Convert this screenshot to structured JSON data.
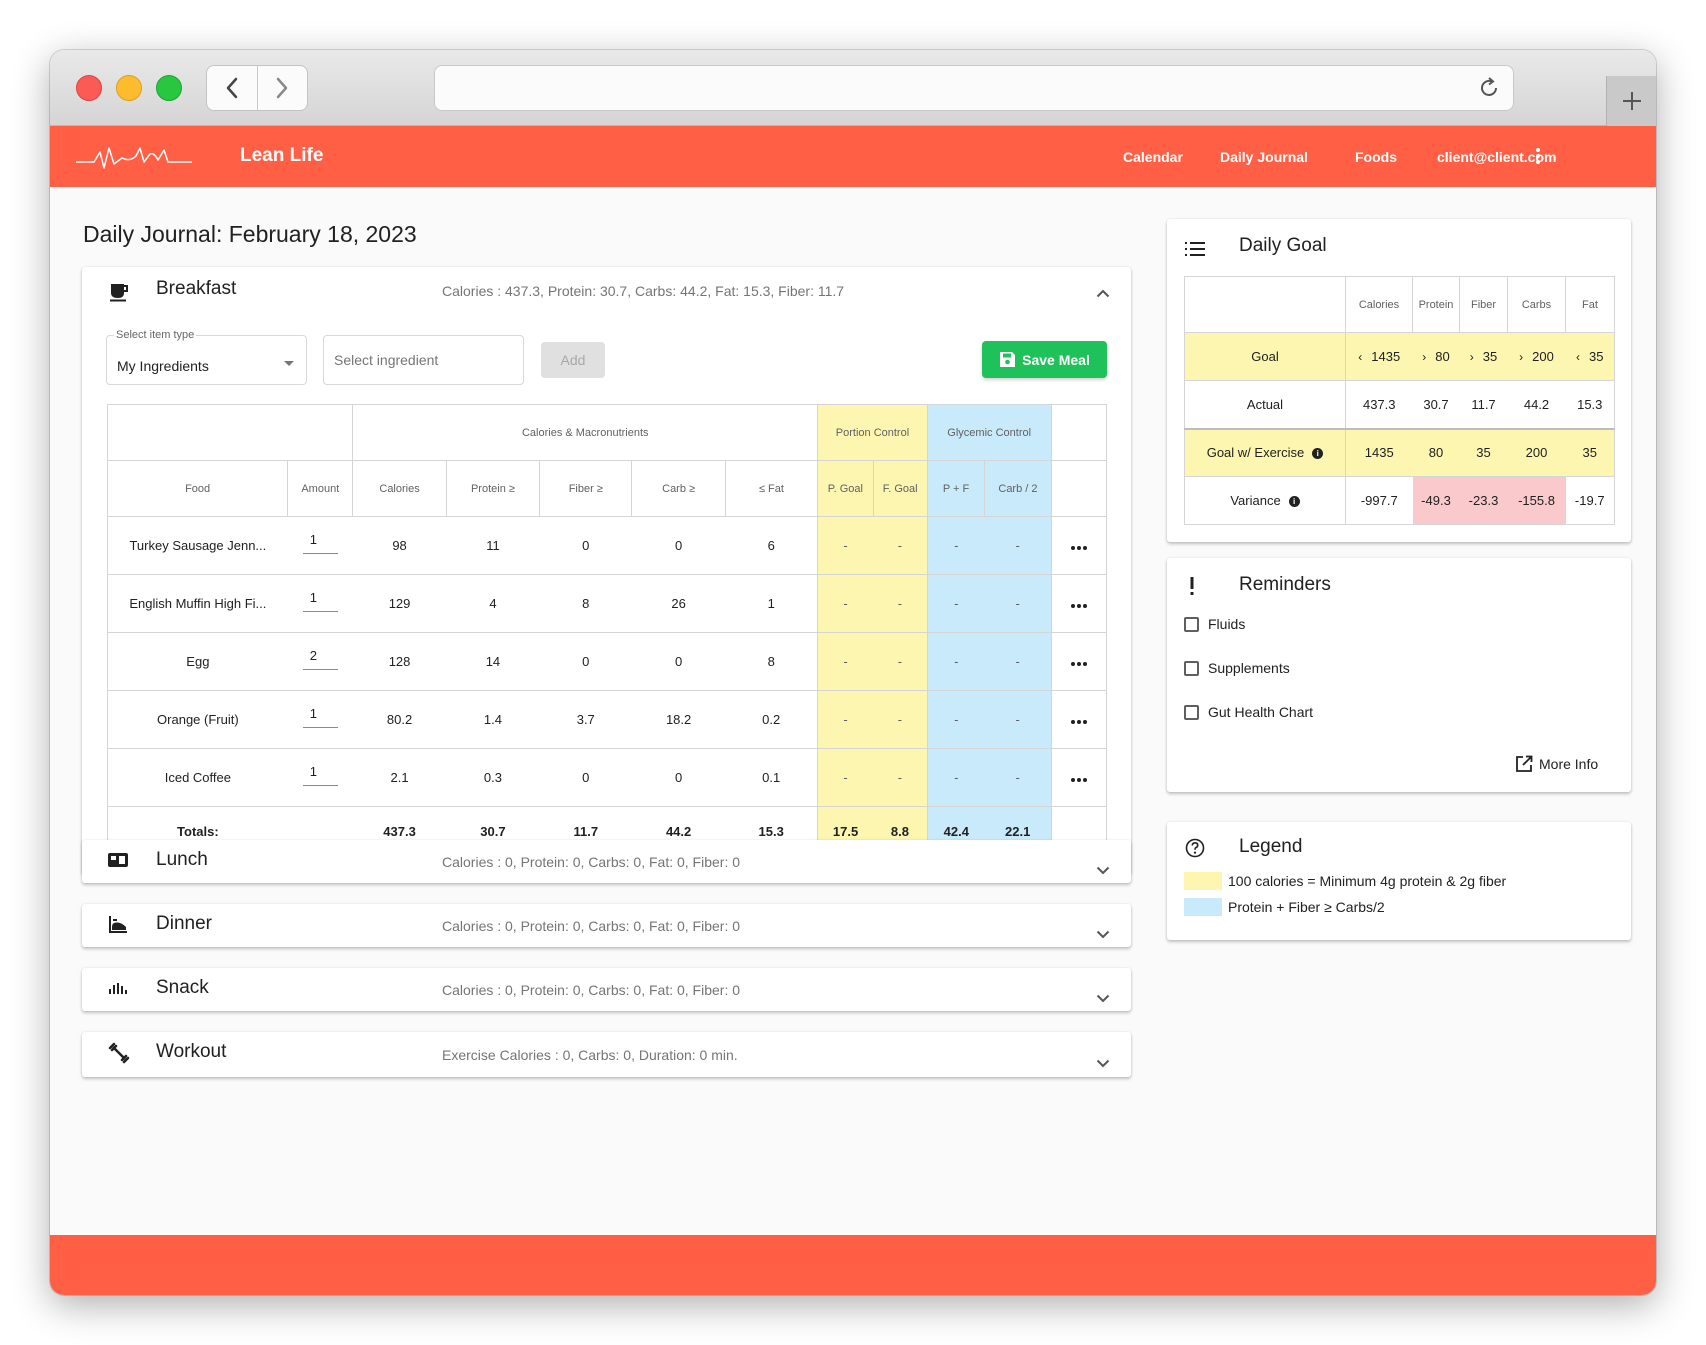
{
  "app": {
    "title": "Lean Life",
    "logo_icon": "heartbeat-signature-logo",
    "nav": [
      "Calendar",
      "Daily Journal",
      "Foods"
    ],
    "user": "client@client.com"
  },
  "page": {
    "title": "Daily Journal: February 18, 2023"
  },
  "breakfast": {
    "title": "Breakfast",
    "summary": "Calories : 437.3, Protein: 30.7, Carbs: 44.2, Fat: 15.3, Fiber: 11.7",
    "select_label": "Select item type",
    "select_value": "My Ingredients",
    "ingredient_placeholder": "Select ingredient",
    "add_label": "Add",
    "save_label": "Save Meal",
    "table": {
      "group_headers": {
        "macros": "Calories & Macronutrients",
        "portion": "Portion Control",
        "glycemic": "Glycemic Control"
      },
      "columns": [
        "Food",
        "Amount",
        "Calories",
        "Protein ≥",
        "Fiber ≥",
        "Carb ≥",
        "≤ Fat",
        "P. Goal",
        "F. Goal",
        "P + F",
        "Carb / 2"
      ],
      "rows": [
        {
          "food": "Turkey Sausage Jenn...",
          "amount": "1",
          "calories": "98",
          "protein": "11",
          "fiber": "0",
          "carb": "0",
          "fat": "6",
          "pgoal": "-",
          "fgoal": "-",
          "pf": "-",
          "carb2": "-"
        },
        {
          "food": "English Muffin High Fi...",
          "amount": "1",
          "calories": "129",
          "protein": "4",
          "fiber": "8",
          "carb": "26",
          "fat": "1",
          "pgoal": "-",
          "fgoal": "-",
          "pf": "-",
          "carb2": "-"
        },
        {
          "food": "Egg",
          "amount": "2",
          "calories": "128",
          "protein": "14",
          "fiber": "0",
          "carb": "0",
          "fat": "8",
          "pgoal": "-",
          "fgoal": "-",
          "pf": "-",
          "carb2": "-"
        },
        {
          "food": "Orange (Fruit)",
          "amount": "1",
          "calories": "80.2",
          "protein": "1.4",
          "fiber": "3.7",
          "carb": "18.2",
          "fat": "0.2",
          "pgoal": "-",
          "fgoal": "-",
          "pf": "-",
          "carb2": "-"
        },
        {
          "food": "Iced Coffee",
          "amount": "1",
          "calories": "2.1",
          "protein": "0.3",
          "fiber": "0",
          "carb": "0",
          "fat": "0.1",
          "pgoal": "-",
          "fgoal": "-",
          "pf": "-",
          "carb2": "-"
        }
      ],
      "totals": {
        "label": "Totals:",
        "calories": "437.3",
        "protein": "30.7",
        "fiber": "11.7",
        "carb": "44.2",
        "fat": "15.3",
        "pgoal": "17.5",
        "fgoal": "8.8",
        "pf": "42.4",
        "carb2": "22.1"
      }
    }
  },
  "meals": [
    {
      "title": "Lunch",
      "summary": "Calories : 0, Protein: 0, Carbs: 0, Fat: 0, Fiber: 0",
      "icon": "lunch-box-icon"
    },
    {
      "title": "Dinner",
      "summary": "Calories : 0, Protein: 0, Carbs: 0, Fat: 0, Fiber: 0",
      "icon": "dinner-icon"
    },
    {
      "title": "Snack",
      "summary": "Calories : 0, Protein: 0, Carbs: 0, Fat: 0, Fiber: 0",
      "icon": "snack-icon"
    },
    {
      "title": "Workout",
      "summary": "Exercise Calories : 0, Carbs: 0, Duration: 0 min.",
      "icon": "dumbbell-icon"
    }
  ],
  "daily_goal": {
    "title": "Daily Goal",
    "columns": [
      "Calories",
      "Protein",
      "Fiber",
      "Carbs",
      "Fat"
    ],
    "goal": {
      "label": "Goal",
      "calories": "1435",
      "protein": "80",
      "fiber": "35",
      "carbs": "200",
      "fat": "35",
      "cmp": {
        "calories": "‹",
        "protein": "›",
        "fiber": "›",
        "carbs": "›",
        "fat": "‹"
      }
    },
    "actual": {
      "label": "Actual",
      "calories": "437.3",
      "protein": "30.7",
      "fiber": "11.7",
      "carbs": "44.2",
      "fat": "15.3"
    },
    "goal_exercise": {
      "label": "Goal w/ Exercise",
      "calories": "1435",
      "protein": "80",
      "fiber": "35",
      "carbs": "200",
      "fat": "35"
    },
    "variance": {
      "label": "Variance",
      "calories": "-997.7",
      "protein": "-49.3",
      "fiber": "-23.3",
      "carbs": "-155.8",
      "fat": "-19.7"
    }
  },
  "reminders": {
    "title": "Reminders",
    "items": [
      "Fluids",
      "Supplements",
      "Gut Health Chart"
    ],
    "more_info": "More Info"
  },
  "legend": {
    "title": "Legend",
    "items": [
      {
        "text": "100 calories = Minimum 4g protein & 2g fiber",
        "color": "#fdf6b1"
      },
      {
        "text": "Protein + Fiber ≥ Carbs/2",
        "color": "#c9eafb"
      }
    ]
  },
  "colors": {
    "brand": "#ff5f45",
    "save": "#1fc15a",
    "portion": "#fdf6b1",
    "glycemic": "#c9eafb",
    "variance_negative": "#f9c9cc"
  }
}
